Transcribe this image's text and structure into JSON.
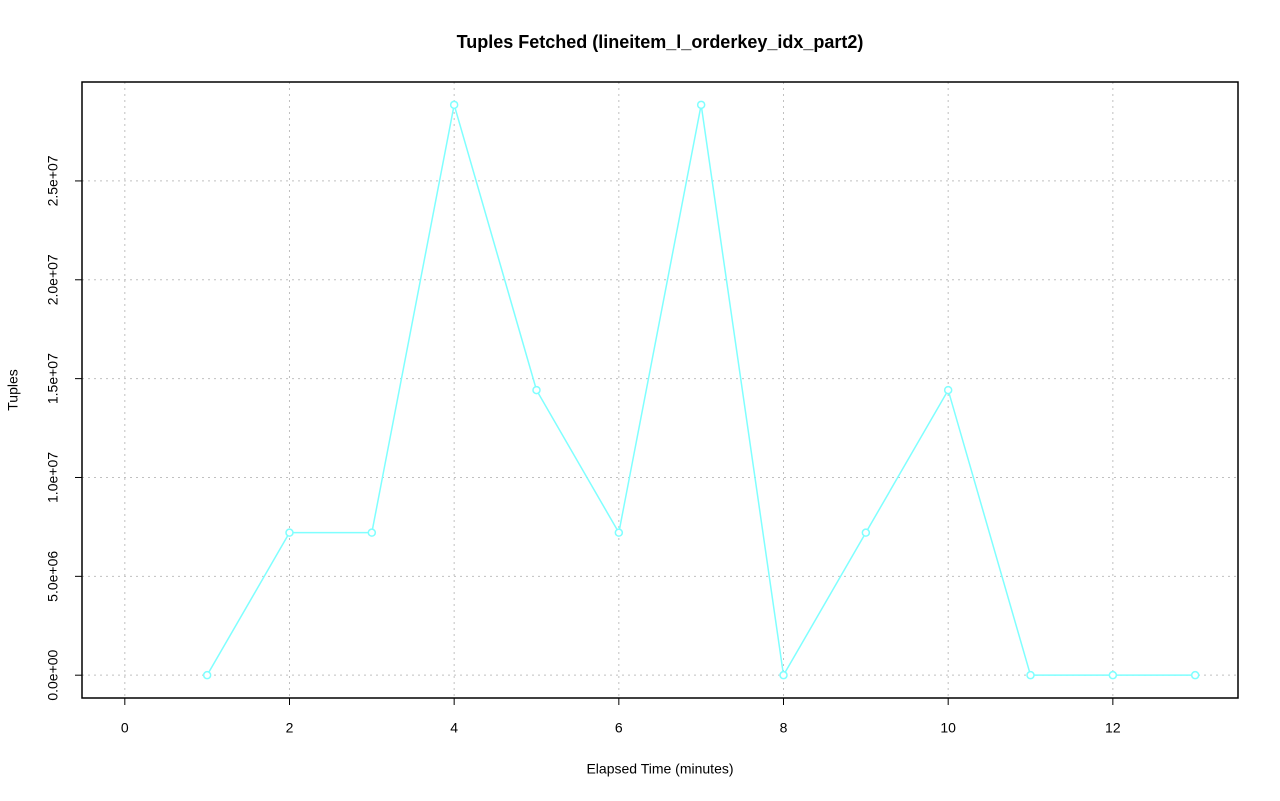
{
  "chart_data": {
    "type": "line",
    "title": "Tuples Fetched (lineitem_l_orderkey_idx_part2)",
    "x_label": "Elapsed Time (minutes)",
    "y_label": "Tuples",
    "x": [
      1,
      2,
      3,
      4,
      5,
      6,
      7,
      8,
      9,
      10,
      11,
      12,
      13
    ],
    "series": [
      {
        "color": "#7fffff",
        "values": [
          0,
          7210000,
          7210000,
          28850000,
          14420000,
          7210000,
          28850000,
          0,
          7210000,
          14420000,
          0,
          0,
          0
        ]
      }
    ],
    "xlim": [
      -0.52,
      13.52
    ],
    "xticks": [
      0,
      2,
      4,
      6,
      8,
      10,
      12
    ],
    "ylim": [
      -1154000,
      30004000
    ],
    "yticks": [
      {
        "value": 0,
        "label": "0.0e+00"
      },
      {
        "value": 5000000,
        "label": "5.0e+06"
      },
      {
        "value": 10000000,
        "label": "1.0e+07"
      },
      {
        "value": 15000000,
        "label": "1.5e+07"
      },
      {
        "value": 20000000,
        "label": "2.0e+07"
      },
      {
        "value": 25000000,
        "label": "2.5e+07"
      }
    ],
    "grid": true
  }
}
